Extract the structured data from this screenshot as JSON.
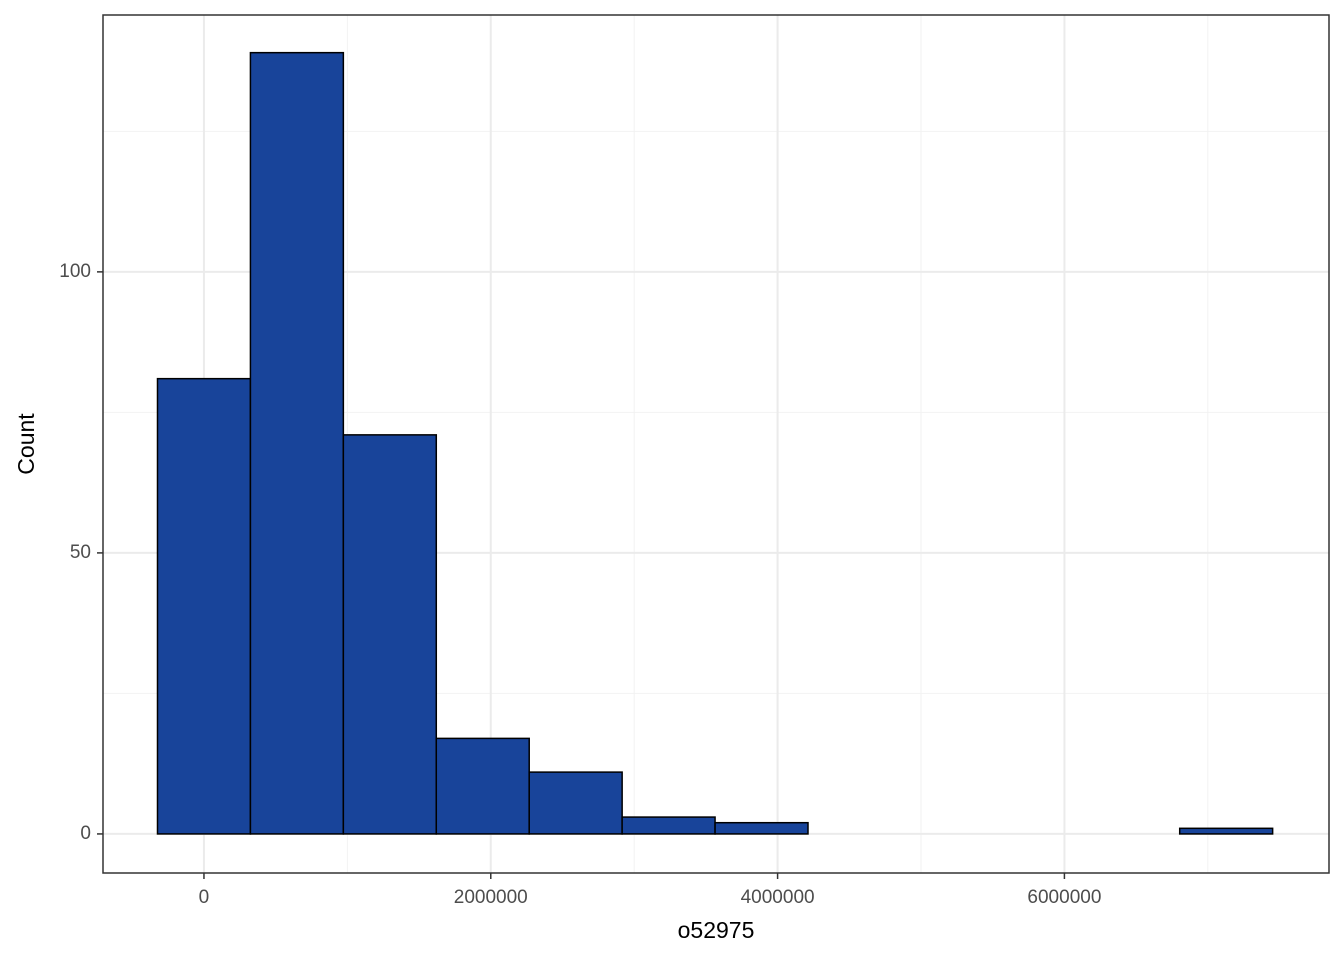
{
  "chart_data": {
    "type": "histogram",
    "x_label": "o52975",
    "y_label": "Count",
    "bins": [
      -324000,
      324000,
      972000,
      1620000,
      2268000,
      2916000,
      3564000,
      4212000,
      4860000,
      5508000,
      6156000,
      6804000,
      7452000
    ],
    "values": [
      81,
      139,
      71,
      17,
      11,
      3,
      2,
      0,
      0,
      0,
      0,
      1
    ],
    "color": "#18449a",
    "edge_color": "#000000",
    "xlim": [
      -704000,
      7845000
    ],
    "xticks": [
      0,
      2000000,
      4000000,
      6000000
    ],
    "ylim": [
      -6.95,
      145.7
    ],
    "yticks": [
      0,
      50,
      100
    ],
    "grid": true
  }
}
